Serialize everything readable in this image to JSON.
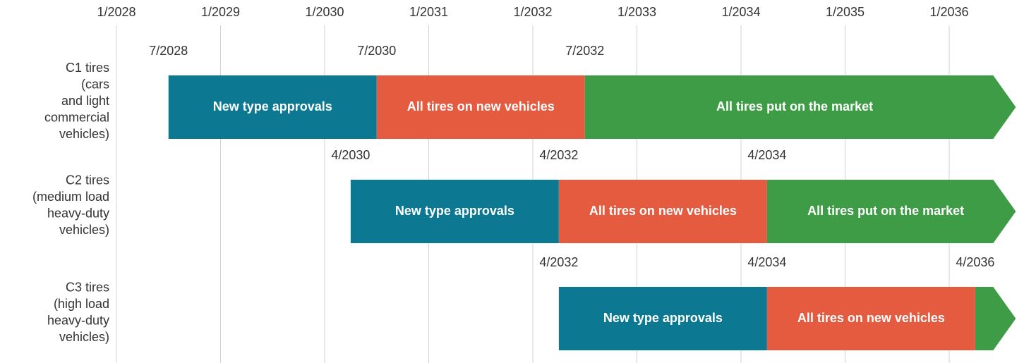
{
  "chart_data": {
    "type": "timeline",
    "xlim": [
      2028,
      2036.64
    ],
    "xticks": [
      {
        "value": 2028,
        "label": "1/2028"
      },
      {
        "value": 2029,
        "label": "1/2029"
      },
      {
        "value": 2030,
        "label": "1/2030"
      },
      {
        "value": 2031,
        "label": "1/2031"
      },
      {
        "value": 2032,
        "label": "1/2032"
      },
      {
        "value": 2033,
        "label": "1/2033"
      },
      {
        "value": 2034,
        "label": "1/2034"
      },
      {
        "value": 2035,
        "label": "1/2035"
      },
      {
        "value": 2036,
        "label": "1/2036"
      }
    ],
    "grid": true,
    "phases": [
      {
        "name": "New type approvals",
        "color": "#0c7892"
      },
      {
        "name": "All tires on new vehicles",
        "color": "#e55b40"
      },
      {
        "name": "All tires put on the market",
        "color": "#3f9c46"
      }
    ],
    "rows": [
      {
        "label": [
          "C1 tires",
          "(cars",
          "and light",
          "commercial",
          "vehicles)"
        ],
        "starts": [
          2028.5,
          2030.5,
          2032.5
        ],
        "start_labels": [
          "7/2028",
          "7/2030",
          "7/2032"
        ]
      },
      {
        "label": [
          "C2 tires",
          "(medium load",
          "heavy-duty",
          "vehicles)"
        ],
        "starts": [
          2030.25,
          2032.25,
          2034.25
        ],
        "start_labels": [
          "4/2030",
          "4/2032",
          "4/2034"
        ]
      },
      {
        "label": [
          "C3 tires",
          "(high load",
          "heavy-duty",
          "vehicles)"
        ],
        "starts": [
          2032.25,
          2034.25,
          2036.25
        ],
        "start_labels": [
          "4/2032",
          "4/2034",
          "4/2036"
        ]
      }
    ]
  }
}
